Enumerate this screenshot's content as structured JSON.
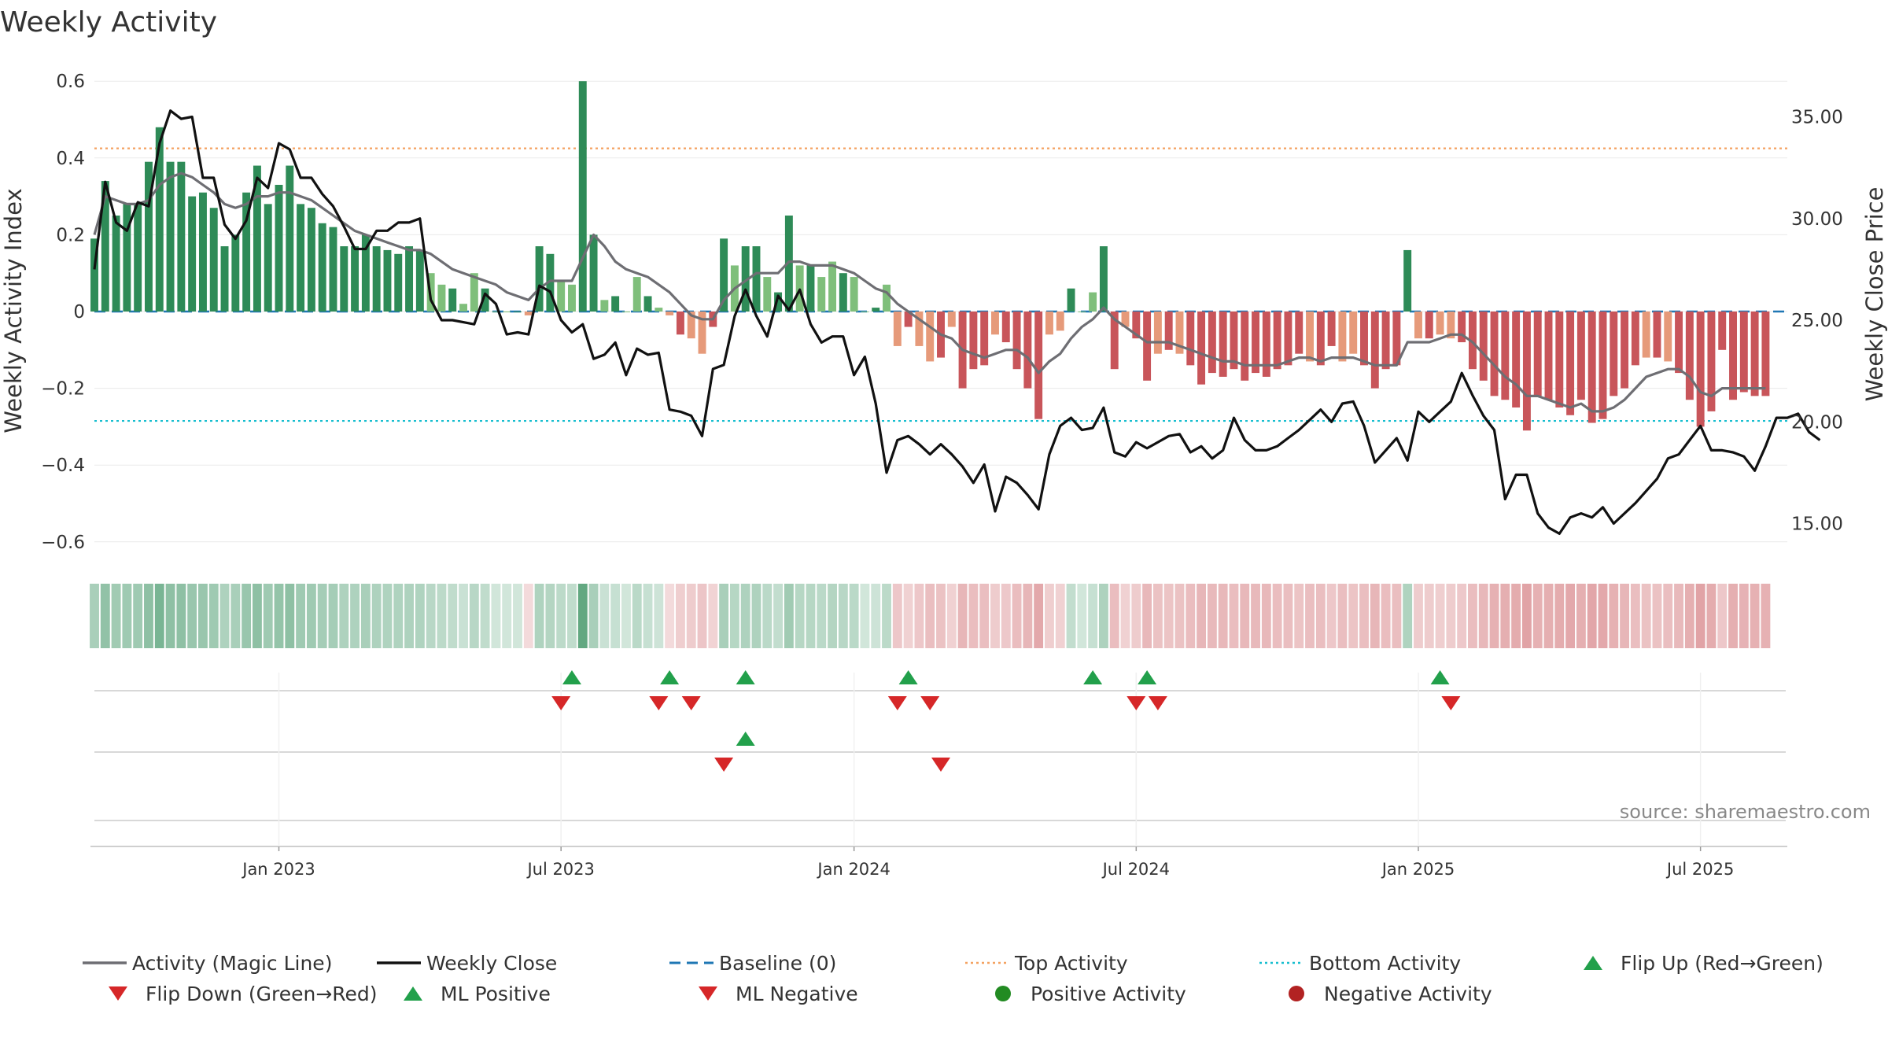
{
  "chart_data": {
    "type": "bar+line",
    "title": "Weekly Activity",
    "ylabel_left": "Weekly Activity Index",
    "ylabel_right": "Weekly Close Price",
    "source": "source: sharemaestro.com",
    "ylim_left": [
      -0.65,
      0.6
    ],
    "ylim_right": [
      12.5,
      37.0
    ],
    "yticks_left": [
      {
        "value": 0.6,
        "label": "0.6"
      },
      {
        "value": 0.4,
        "label": "0.4"
      },
      {
        "value": 0.2,
        "label": "0.2"
      },
      {
        "value": 0.0,
        "label": "0"
      },
      {
        "value": -0.2,
        "label": "−0.2"
      },
      {
        "value": -0.4,
        "label": "−0.4"
      },
      {
        "value": -0.6,
        "label": "−0.6"
      }
    ],
    "yticks_right": [
      {
        "value": 35,
        "label": "35.00"
      },
      {
        "value": 30,
        "label": "30.00"
      },
      {
        "value": 25,
        "label": "25.00"
      },
      {
        "value": 20,
        "label": "20.00"
      },
      {
        "value": 15,
        "label": "15.00"
      }
    ],
    "xticks": [
      {
        "week": 17,
        "label": "Jan 2023"
      },
      {
        "week": 43,
        "label": "Jul 2023"
      },
      {
        "week": 70,
        "label": "Jan 2024"
      },
      {
        "week": 96,
        "label": "Jul 2024"
      },
      {
        "week": 122,
        "label": "Jan 2025"
      },
      {
        "week": 148,
        "label": "Jul 2025"
      }
    ],
    "weeks": 157,
    "week_spacing_days": 7,
    "top_activity": 0.425,
    "bottom_activity": -0.285,
    "baseline": 0,
    "activity_index": [
      0.19,
      0.34,
      0.25,
      0.28,
      0.28,
      0.39,
      0.48,
      0.39,
      0.39,
      0.3,
      0.31,
      0.27,
      0.17,
      0.2,
      0.31,
      0.38,
      0.28,
      0.33,
      0.38,
      0.28,
      0.27,
      0.23,
      0.22,
      0.17,
      0.17,
      0.2,
      0.17,
      0.16,
      0.15,
      0.17,
      0.16,
      0.1,
      0.07,
      0.06,
      0.02,
      0.1,
      0.06,
      0.0,
      0.0,
      0.0,
      -0.01,
      0.17,
      0.15,
      0.08,
      0.07,
      0.6,
      0.2,
      0.03,
      0.04,
      0.0,
      0.09,
      0.04,
      0.01,
      -0.01,
      -0.06,
      -0.07,
      -0.11,
      -0.04,
      0.19,
      0.12,
      0.17,
      0.17,
      0.09,
      0.05,
      0.25,
      0.12,
      0.12,
      0.09,
      0.13,
      0.1,
      0.09,
      0.0,
      0.01,
      0.07,
      -0.09,
      -0.04,
      -0.09,
      -0.13,
      -0.12,
      -0.04,
      -0.2,
      -0.15,
      -0.14,
      -0.06,
      -0.08,
      -0.15,
      -0.2,
      -0.28,
      -0.06,
      -0.05,
      0.06,
      0.0,
      0.05,
      0.17,
      -0.15,
      -0.04,
      -0.07,
      -0.18,
      -0.11,
      -0.1,
      -0.11,
      -0.14,
      -0.19,
      -0.16,
      -0.17,
      -0.15,
      -0.18,
      -0.16,
      -0.17,
      -0.15,
      -0.14,
      -0.11,
      -0.13,
      -0.14,
      -0.09,
      -0.13,
      -0.11,
      -0.14,
      -0.2,
      -0.15,
      -0.14,
      0.16,
      -0.07,
      -0.07,
      -0.06,
      -0.07,
      -0.08,
      -0.15,
      -0.18,
      -0.22,
      -0.23,
      -0.25,
      -0.31,
      -0.22,
      -0.23,
      -0.25,
      -0.27,
      -0.23,
      -0.29,
      -0.28,
      -0.22,
      -0.2,
      -0.14,
      -0.12,
      -0.12,
      -0.13,
      -0.16,
      -0.23,
      -0.3,
      -0.26,
      -0.1,
      -0.23,
      -0.21,
      -0.22,
      -0.22
    ],
    "magic_line": [
      0.2,
      0.3,
      0.29,
      0.28,
      0.28,
      0.29,
      0.33,
      0.35,
      0.36,
      0.35,
      0.33,
      0.31,
      0.28,
      0.27,
      0.28,
      0.3,
      0.3,
      0.31,
      0.31,
      0.3,
      0.29,
      0.27,
      0.25,
      0.23,
      0.21,
      0.2,
      0.19,
      0.18,
      0.17,
      0.16,
      0.16,
      0.15,
      0.13,
      0.11,
      0.1,
      0.09,
      0.08,
      0.07,
      0.05,
      0.04,
      0.03,
      0.06,
      0.08,
      0.08,
      0.08,
      0.14,
      0.2,
      0.17,
      0.13,
      0.11,
      0.1,
      0.09,
      0.07,
      0.05,
      0.02,
      -0.01,
      -0.02,
      -0.02,
      0.03,
      0.06,
      0.08,
      0.1,
      0.1,
      0.1,
      0.13,
      0.13,
      0.12,
      0.12,
      0.12,
      0.11,
      0.1,
      0.08,
      0.06,
      0.05,
      0.02,
      0.0,
      -0.02,
      -0.04,
      -0.06,
      -0.07,
      -0.1,
      -0.11,
      -0.12,
      -0.11,
      -0.1,
      -0.1,
      -0.12,
      -0.16,
      -0.13,
      -0.11,
      -0.07,
      -0.04,
      -0.02,
      0.01,
      -0.02,
      -0.04,
      -0.06,
      -0.08,
      -0.08,
      -0.08,
      -0.09,
      -0.1,
      -0.11,
      -0.12,
      -0.13,
      -0.13,
      -0.14,
      -0.14,
      -0.14,
      -0.14,
      -0.13,
      -0.12,
      -0.12,
      -0.13,
      -0.12,
      -0.12,
      -0.12,
      -0.13,
      -0.14,
      -0.14,
      -0.14,
      -0.08,
      -0.08,
      -0.08,
      -0.07,
      -0.06,
      -0.06,
      -0.08,
      -0.11,
      -0.14,
      -0.17,
      -0.19,
      -0.22,
      -0.22,
      -0.23,
      -0.24,
      -0.25,
      -0.24,
      -0.26,
      -0.26,
      -0.25,
      -0.23,
      -0.2,
      -0.17,
      -0.16,
      -0.15,
      -0.15,
      -0.17,
      -0.21,
      -0.22,
      -0.2,
      -0.2,
      -0.2,
      -0.2,
      -0.2
    ],
    "weekly_close": [
      27.5,
      31.8,
      29.8,
      29.4,
      30.8,
      30.6,
      33.7,
      35.3,
      34.9,
      35.0,
      32.0,
      32.0,
      29.7,
      29.0,
      29.9,
      32.0,
      31.5,
      33.7,
      33.4,
      32.0,
      32.0,
      31.2,
      30.6,
      29.6,
      28.5,
      28.5,
      29.4,
      29.4,
      29.8,
      29.8,
      30.0,
      26.0,
      25.0,
      25.0,
      24.9,
      24.8,
      26.3,
      25.8,
      24.3,
      24.4,
      24.3,
      26.7,
      26.4,
      25.0,
      24.4,
      24.8,
      23.1,
      23.3,
      23.9,
      22.3,
      23.6,
      23.3,
      23.4,
      20.6,
      20.5,
      20.3,
      19.3,
      22.6,
      22.8,
      25.2,
      26.5,
      25.2,
      24.2,
      26.2,
      25.5,
      26.5,
      24.8,
      23.9,
      24.2,
      24.2,
      22.3,
      23.2,
      20.9,
      17.5,
      19.1,
      19.3,
      18.9,
      18.4,
      18.9,
      18.4,
      17.8,
      17.0,
      17.9,
      15.6,
      17.3,
      17.0,
      16.4,
      15.7,
      18.4,
      19.8,
      20.2,
      19.6,
      19.7,
      20.7,
      18.5,
      18.3,
      19.0,
      18.7,
      19.0,
      19.3,
      19.4,
      18.5,
      18.8,
      18.2,
      18.6,
      20.2,
      19.1,
      18.6,
      18.6,
      18.8,
      19.2,
      19.6,
      20.1,
      20.6,
      20.0,
      20.9,
      21.0,
      19.8,
      18.0,
      18.6,
      19.2,
      18.1,
      20.5,
      20.0,
      20.5,
      21.0,
      22.4,
      21.3,
      20.3,
      19.6,
      16.2,
      17.4,
      17.4,
      15.5,
      14.8,
      14.5,
      15.3,
      15.5,
      15.3,
      15.8,
      15.0,
      15.5,
      16.0,
      16.6,
      17.2,
      18.2,
      18.4,
      19.1,
      19.8,
      18.6,
      18.6,
      18.5,
      18.3,
      17.6,
      18.8,
      20.2,
      20.2,
      20.4,
      19.5,
      19.1
    ],
    "activity_strip_opacity": [
      0.55,
      0.7,
      0.6,
      0.62,
      0.62,
      0.72,
      0.85,
      0.72,
      0.72,
      0.65,
      0.66,
      0.62,
      0.52,
      0.55,
      0.66,
      0.72,
      0.62,
      0.68,
      0.72,
      0.62,
      0.62,
      0.58,
      0.57,
      0.52,
      0.52,
      0.55,
      0.52,
      0.51,
      0.5,
      0.52,
      0.51,
      0.45,
      0.42,
      0.4,
      0.35,
      0.45,
      0.4,
      0.3,
      0.3,
      0.3,
      0.3,
      0.5,
      0.48,
      0.42,
      0.4,
      1.0,
      0.55,
      0.35,
      0.36,
      0.3,
      0.44,
      0.36,
      0.32,
      0.3,
      0.38,
      0.4,
      0.45,
      0.35,
      0.55,
      0.46,
      0.52,
      0.52,
      0.44,
      0.38,
      0.6,
      0.46,
      0.46,
      0.44,
      0.48,
      0.45,
      0.44,
      0.3,
      0.32,
      0.42,
      0.44,
      0.36,
      0.44,
      0.5,
      0.48,
      0.36,
      0.58,
      0.52,
      0.5,
      0.4,
      0.42,
      0.52,
      0.58,
      0.68,
      0.38,
      0.36,
      0.38,
      0.3,
      0.36,
      0.52,
      0.52,
      0.36,
      0.4,
      0.56,
      0.48,
      0.46,
      0.48,
      0.52,
      0.58,
      0.54,
      0.56,
      0.52,
      0.56,
      0.54,
      0.56,
      0.52,
      0.5,
      0.46,
      0.5,
      0.5,
      0.44,
      0.5,
      0.46,
      0.5,
      0.58,
      0.52,
      0.5,
      0.5,
      0.4,
      0.4,
      0.38,
      0.4,
      0.42,
      0.52,
      0.56,
      0.62,
      0.63,
      0.65,
      0.72,
      0.62,
      0.63,
      0.65,
      0.68,
      0.63,
      0.7,
      0.68,
      0.62,
      0.58,
      0.5,
      0.48,
      0.48,
      0.5,
      0.54,
      0.63,
      0.72,
      0.66,
      0.44,
      0.63,
      0.6,
      0.62,
      0.62
    ],
    "flip_up_weeks": [
      44,
      53,
      60,
      75,
      92,
      97,
      124
    ],
    "flip_down_weeks": [
      43,
      52,
      55,
      74,
      77,
      96,
      98,
      125
    ],
    "ml_positive_weeks": [
      60
    ],
    "ml_negative_weeks": [
      58,
      78
    ],
    "colors": {
      "strong_green": "#2e8b57",
      "light_green": "#7fbf7b",
      "strong_red": "#c8555a",
      "light_red": "#e69a7a",
      "magic_line": "#6e6e73",
      "weekly_close": "#111111",
      "baseline": "#1f77b4",
      "top_activity": "#f4a261",
      "bottom_activity": "#17becf",
      "flip_up": "#22a04b",
      "flip_down": "#d62728"
    },
    "legend": [
      {
        "key": "magic",
        "label": "Activity (Magic Line)"
      },
      {
        "key": "close",
        "label": "Weekly Close"
      },
      {
        "key": "baseline",
        "label": "Baseline (0)"
      },
      {
        "key": "top",
        "label": "Top Activity"
      },
      {
        "key": "bottom",
        "label": "Bottom Activity"
      },
      {
        "key": "flipup",
        "label": "Flip Up (Red→Green)"
      },
      {
        "key": "flipdown",
        "label": "Flip Down (Green→Red)"
      },
      {
        "key": "mlpos",
        "label": "ML Positive"
      },
      {
        "key": "mlneg",
        "label": "ML Negative"
      },
      {
        "key": "posact",
        "label": "Positive Activity"
      },
      {
        "key": "negact",
        "label": "Negative Activity"
      }
    ]
  }
}
